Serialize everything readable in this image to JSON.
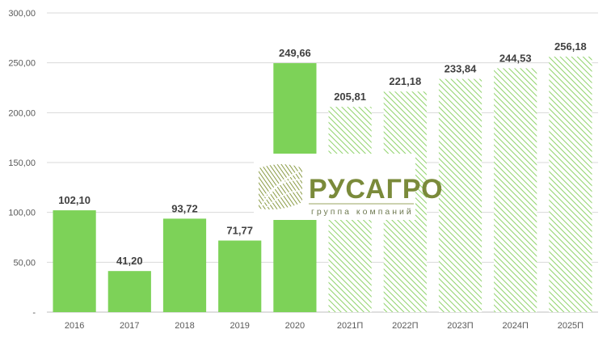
{
  "chart_data": {
    "type": "bar",
    "categories": [
      "2016",
      "2017",
      "2018",
      "2019",
      "2020",
      "2021П",
      "2022П",
      "2023П",
      "2024П",
      "2025П"
    ],
    "values": [
      102.1,
      41.2,
      93.72,
      71.77,
      249.66,
      205.81,
      221.18,
      233.84,
      244.53,
      256.18
    ],
    "value_labels": [
      "102,10",
      "41,20",
      "93,72",
      "71,77",
      "249,66",
      "205,81",
      "221,18",
      "233,84",
      "244,53",
      "256,18"
    ],
    "forecast": [
      false,
      false,
      false,
      false,
      false,
      true,
      true,
      true,
      true,
      true
    ],
    "yticks": [
      {
        "value": 0,
        "label": "-"
      },
      {
        "value": 50,
        "label": "50,00"
      },
      {
        "value": 100,
        "label": "100,00"
      },
      {
        "value": 150,
        "label": "150,00"
      },
      {
        "value": 200,
        "label": "200,00"
      },
      {
        "value": 250,
        "label": "250,00"
      },
      {
        "value": 300,
        "label": "300,00"
      }
    ],
    "ylim": [
      0,
      300
    ],
    "grid": true,
    "legend": "none",
    "colors": {
      "actual": "#7dd258",
      "forecast_hatch": "#8fd26a",
      "grid": "#d9d9d9",
      "axis": "#bfbfbf"
    }
  },
  "logo": {
    "title": "РУСАГРО",
    "subtitle": "группа компаний"
  }
}
